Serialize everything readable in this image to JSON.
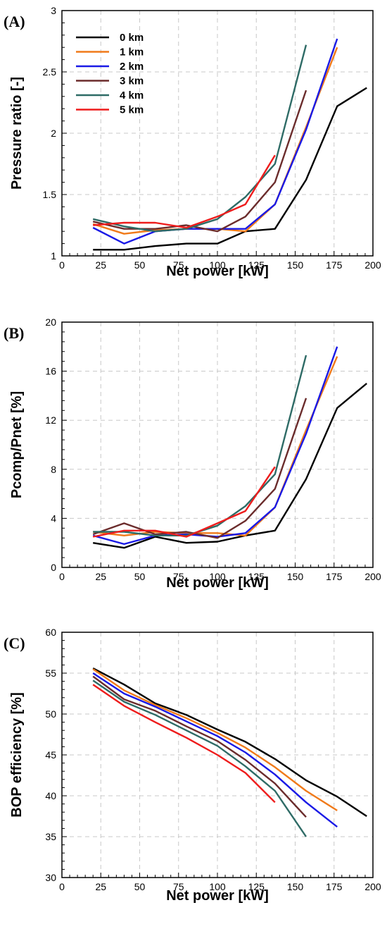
{
  "colors": {
    "0 km": "#000000",
    "1 km": "#f07a1a",
    "2 km": "#1a1ae6",
    "3 km": "#6b2c2c",
    "4 km": "#2e6b66",
    "5 km": "#ee1c1c"
  },
  "chart_data": [
    {
      "type": "line",
      "panel_label": "(A)",
      "xlabel": "Net power [kW]",
      "ylabel": "Pressure ratio [-]",
      "xlim": [
        0,
        200
      ],
      "ylim": [
        1,
        3
      ],
      "xticks": [
        0,
        25,
        50,
        75,
        100,
        125,
        150,
        175,
        200
      ],
      "yticks": [
        1,
        1.5,
        2,
        2.5,
        3
      ],
      "ytick_labels": [
        "1",
        "1.5",
        "2",
        "2.5",
        "3"
      ],
      "grid": true,
      "legend": "top-left",
      "series": [
        {
          "name": "0 km",
          "x": [
            20,
            40,
            60,
            80,
            100,
            118,
            137,
            157,
            177,
            196
          ],
          "y": [
            1.05,
            1.05,
            1.08,
            1.1,
            1.1,
            1.2,
            1.22,
            1.62,
            2.22,
            2.37
          ]
        },
        {
          "name": "1 km",
          "x": [
            20,
            40,
            60,
            80,
            100,
            118,
            137,
            157,
            177
          ],
          "y": [
            1.26,
            1.18,
            1.21,
            1.22,
            1.22,
            1.2,
            1.42,
            2.05,
            2.7
          ]
        },
        {
          "name": "2 km",
          "x": [
            20,
            40,
            60,
            80,
            100,
            118,
            137,
            157,
            177
          ],
          "y": [
            1.23,
            1.1,
            1.2,
            1.22,
            1.22,
            1.22,
            1.42,
            2.03,
            2.77
          ]
        },
        {
          "name": "3 km",
          "x": [
            20,
            40,
            60,
            80,
            100,
            118,
            137,
            157
          ],
          "y": [
            1.28,
            1.22,
            1.22,
            1.25,
            1.2,
            1.32,
            1.6,
            2.35
          ]
        },
        {
          "name": "4 km",
          "x": [
            20,
            40,
            60,
            80,
            100,
            118,
            137,
            157
          ],
          "y": [
            1.3,
            1.24,
            1.2,
            1.22,
            1.3,
            1.48,
            1.75,
            2.72
          ]
        },
        {
          "name": "5 km",
          "x": [
            20,
            40,
            60,
            80,
            100,
            118,
            137
          ],
          "y": [
            1.25,
            1.27,
            1.27,
            1.23,
            1.32,
            1.42,
            1.82
          ]
        }
      ]
    },
    {
      "type": "line",
      "panel_label": "(B)",
      "xlabel": "Net power [kW]",
      "ylabel": "Pcomp/Pnet [%]",
      "xlim": [
        0,
        200
      ],
      "ylim": [
        0,
        20
      ],
      "xticks": [
        0,
        25,
        50,
        75,
        100,
        125,
        150,
        175,
        200
      ],
      "yticks": [
        0,
        4,
        8,
        12,
        16,
        20
      ],
      "ytick_labels": [
        "0",
        "4",
        "8",
        "12",
        "16",
        "20"
      ],
      "grid": true,
      "series": [
        {
          "name": "0 km",
          "x": [
            20,
            40,
            60,
            80,
            100,
            118,
            137,
            157,
            177,
            196
          ],
          "y": [
            2.0,
            1.6,
            2.5,
            2.0,
            2.1,
            2.6,
            3.0,
            7.2,
            13.0,
            15.0
          ]
        },
        {
          "name": "1 km",
          "x": [
            20,
            40,
            60,
            80,
            100,
            118,
            137,
            157,
            177
          ],
          "y": [
            2.9,
            2.6,
            2.9,
            2.8,
            2.8,
            2.6,
            4.9,
            11.2,
            17.2
          ]
        },
        {
          "name": "2 km",
          "x": [
            20,
            40,
            60,
            80,
            100,
            118,
            137,
            157,
            177
          ],
          "y": [
            2.6,
            1.9,
            2.6,
            2.7,
            2.5,
            2.8,
            4.9,
            10.9,
            18.0
          ]
        },
        {
          "name": "3 km",
          "x": [
            20,
            40,
            60,
            80,
            100,
            118,
            137,
            157
          ],
          "y": [
            2.7,
            3.6,
            2.7,
            2.9,
            2.4,
            3.8,
            6.4,
            13.8
          ]
        },
        {
          "name": "4 km",
          "x": [
            20,
            40,
            60,
            80,
            100,
            118,
            137,
            157
          ],
          "y": [
            2.9,
            2.9,
            2.6,
            2.6,
            3.4,
            5.0,
            7.6,
            17.3
          ]
        },
        {
          "name": "5 km",
          "x": [
            20,
            40,
            60,
            80,
            100,
            118,
            137
          ],
          "y": [
            2.5,
            3.0,
            3.0,
            2.5,
            3.6,
            4.6,
            8.2
          ]
        }
      ]
    },
    {
      "type": "line",
      "panel_label": "(C)",
      "xlabel": "Net power [kW]",
      "ylabel": "BOP efficiency [%]",
      "xlim": [
        0,
        200
      ],
      "ylim": [
        30,
        60
      ],
      "xticks": [
        0,
        25,
        50,
        75,
        100,
        125,
        150,
        175,
        200
      ],
      "yticks": [
        30,
        35,
        40,
        45,
        50,
        55,
        60
      ],
      "ytick_labels": [
        "30",
        "35",
        "40",
        "45",
        "50",
        "55",
        "60"
      ],
      "grid": true,
      "series": [
        {
          "name": "0 km",
          "x": [
            20,
            40,
            60,
            80,
            100,
            118,
            137,
            157,
            177,
            196
          ],
          "y": [
            55.6,
            53.6,
            51.3,
            49.9,
            48.1,
            46.6,
            44.5,
            41.9,
            39.9,
            37.5
          ]
        },
        {
          "name": "1 km",
          "x": [
            20,
            40,
            60,
            80,
            100,
            118,
            137,
            157,
            177
          ],
          "y": [
            55.5,
            52.9,
            51.1,
            49.5,
            47.7,
            45.9,
            43.5,
            40.6,
            38.2
          ]
        },
        {
          "name": "2 km",
          "x": [
            20,
            40,
            60,
            80,
            100,
            118,
            137,
            157,
            177
          ],
          "y": [
            55.0,
            52.5,
            50.9,
            49.1,
            47.3,
            45.3,
            42.6,
            39.2,
            36.2
          ]
        },
        {
          "name": "3 km",
          "x": [
            20,
            40,
            60,
            80,
            100,
            118,
            137,
            157
          ],
          "y": [
            54.6,
            51.8,
            50.4,
            48.5,
            46.7,
            44.4,
            41.5,
            37.4
          ]
        },
        {
          "name": "4 km",
          "x": [
            20,
            40,
            60,
            80,
            100,
            118,
            137,
            157
          ],
          "y": [
            54.1,
            51.5,
            49.9,
            48.0,
            46.1,
            43.6,
            40.6,
            35.0
          ]
        },
        {
          "name": "5 km",
          "x": [
            20,
            40,
            60,
            80,
            100,
            118,
            137
          ],
          "y": [
            53.6,
            51.0,
            49.0,
            47.1,
            45.0,
            42.8,
            39.2
          ]
        }
      ]
    }
  ]
}
